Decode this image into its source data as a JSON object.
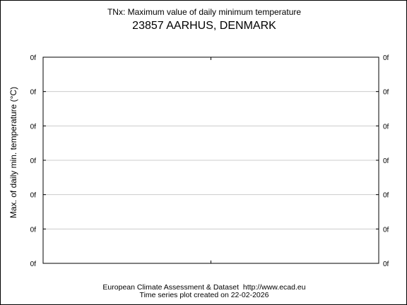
{
  "chart_data": {
    "type": "line",
    "title": "TNx: Maximum value of daily minimum temperature",
    "subtitle": "23857 AARHUS, DENMARK",
    "xlabel": "",
    "ylabel": "Max. of daily min. temperature (°C)",
    "y_tick_labels": [
      "0f",
      "0f",
      "0f",
      "0f",
      "0f",
      "0f",
      "0f"
    ],
    "y_tick_labels_right": [
      "0f",
      "0f",
      "0f",
      "0f",
      "0f",
      "0f",
      "0f"
    ],
    "x_tick_labels": [],
    "series": [],
    "grid": true
  },
  "footer": {
    "line1": "European Climate Assessment & Dataset  http://www.ecad.eu",
    "line2": "Time series plot created on 22-02-2026"
  },
  "colors": {
    "background": "#ffffff",
    "frame": "#000000",
    "gridline": "#cccccc",
    "text": "#000000"
  }
}
